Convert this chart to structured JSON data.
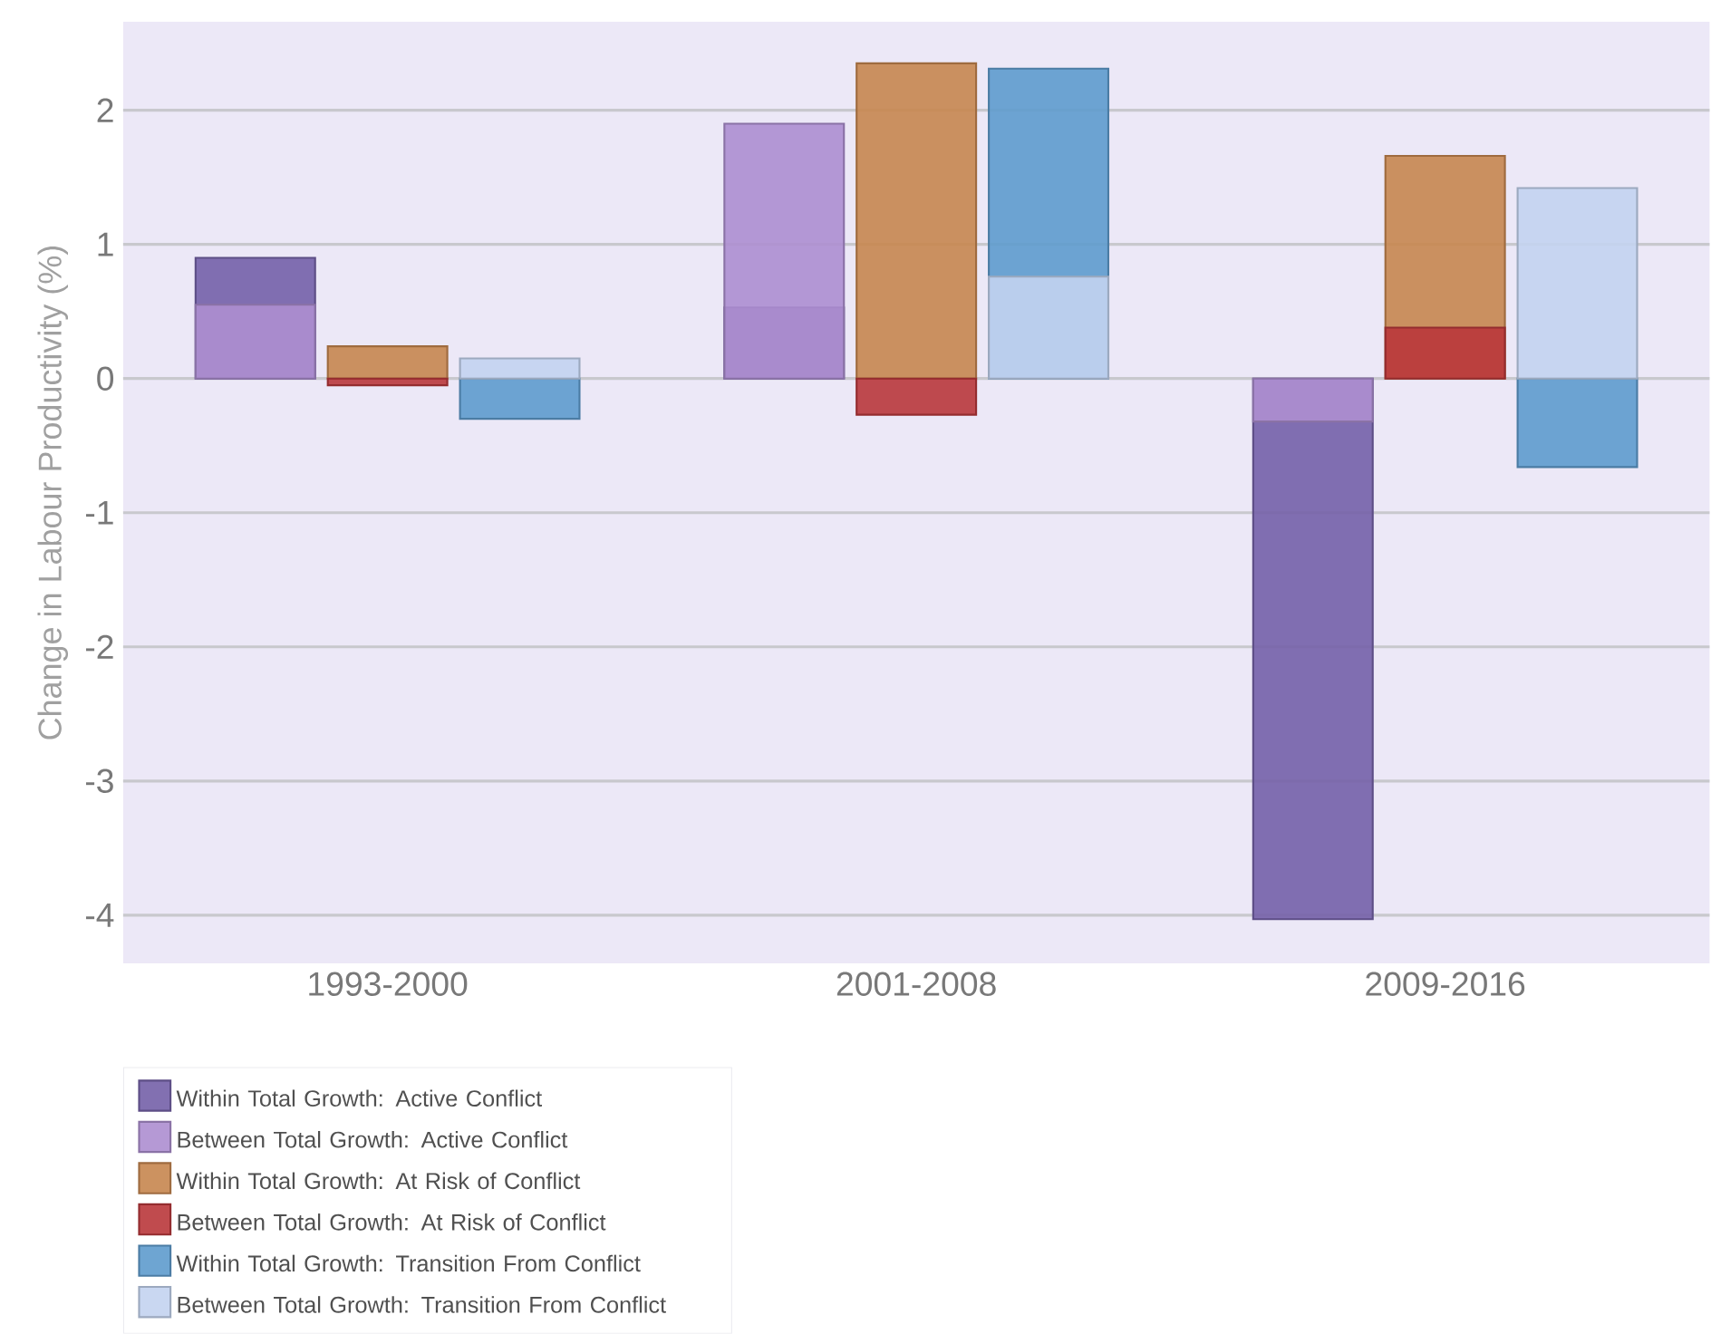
{
  "chart_data": {
    "type": "bar",
    "ylabel": "Change in Labour Productivity (%)",
    "categories": [
      "1993-2000",
      "2001-2008",
      "2009-2016"
    ],
    "series": [
      {
        "name": "Within Total Growth: Active Conflict",
        "color": "#7461a8",
        "values": [
          0.9,
          0.53,
          -4.03
        ]
      },
      {
        "name": "Between Total Growth: Active Conflict",
        "color": "#ad8ed0",
        "values": [
          0.55,
          1.9,
          -0.32
        ]
      },
      {
        "name": "Within Total Growth: At Risk of Conflict",
        "color": "#c7864f",
        "values": [
          0.24,
          2.35,
          1.66
        ]
      },
      {
        "name": "Between Total Growth: At Risk of Conflict",
        "color": "#b9373b",
        "values": [
          -0.05,
          -0.27,
          0.38
        ]
      },
      {
        "name": "Within Total Growth: Transition From Conflict",
        "color": "#5e9bcd",
        "values": [
          -0.3,
          2.31,
          -0.66
        ]
      },
      {
        "name": "Between Total Growth: Transition From Conflict",
        "color": "#c3d3ef",
        "values": [
          0.15,
          0.76,
          1.42
        ]
      }
    ],
    "ylim": [
      -4.36,
      2.66
    ],
    "yticks": [
      -4,
      -3,
      -2,
      -1,
      0,
      1,
      2
    ],
    "grid": "y",
    "legend": "bottom left"
  }
}
